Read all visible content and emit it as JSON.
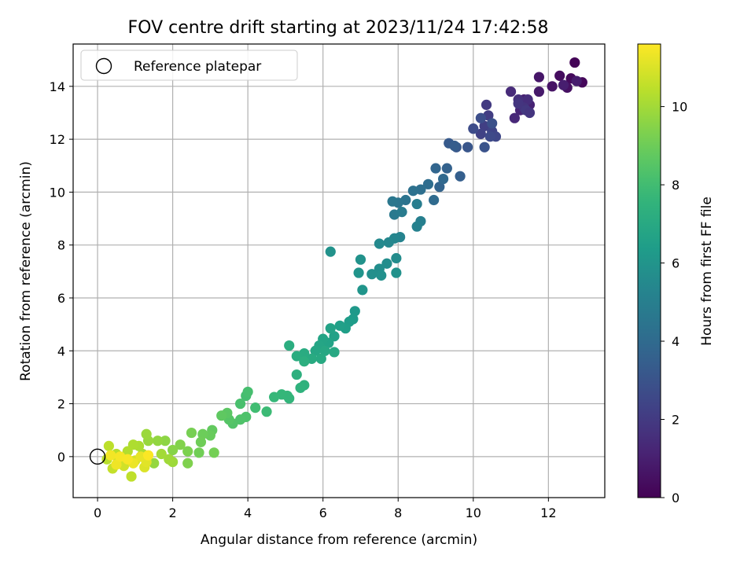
{
  "chart_data": {
    "type": "scatter",
    "title": "FOV centre drift starting at 2023/11/24 17:42:58",
    "xlabel": "Angular distance from reference (arcmin)",
    "ylabel": "Rotation from reference (arcmin)",
    "xlim": [
      -0.65,
      13.5
    ],
    "ylim": [
      -1.55,
      15.6
    ],
    "xticks": [
      0,
      2,
      4,
      6,
      8,
      10,
      12
    ],
    "yticks": [
      0,
      2,
      4,
      6,
      8,
      10,
      12,
      14
    ],
    "grid": true,
    "legend": {
      "placement": "upper-left",
      "entries": [
        "Reference platepar"
      ]
    },
    "reference_point": {
      "x": 0,
      "y": 0,
      "marker": "open-circle"
    },
    "colorbar": {
      "label": "Hours from first FF file",
      "colormap": "viridis",
      "range": [
        0,
        11.6
      ],
      "ticks": [
        0,
        2,
        4,
        6,
        8,
        10
      ]
    },
    "points": [
      [
        12.7,
        14.9,
        0.1
      ],
      [
        12.9,
        14.15,
        0.2
      ],
      [
        12.6,
        14.3,
        0.3
      ],
      [
        12.3,
        14.4,
        0.4
      ],
      [
        12.5,
        13.95,
        0.5
      ],
      [
        12.1,
        14.0,
        0.6
      ],
      [
        11.75,
        14.35,
        0.7
      ],
      [
        11.75,
        13.8,
        0.8
      ],
      [
        12.75,
        14.2,
        0.9
      ],
      [
        12.4,
        14.05,
        0.95
      ],
      [
        11.35,
        13.5,
        1.0
      ],
      [
        11.5,
        13.3,
        1.1
      ],
      [
        11.25,
        13.1,
        1.2
      ],
      [
        11.1,
        12.8,
        1.3
      ],
      [
        11.0,
        13.8,
        1.4
      ],
      [
        11.45,
        13.5,
        1.5
      ],
      [
        11.2,
        13.5,
        1.6
      ],
      [
        11.35,
        13.2,
        1.7
      ],
      [
        11.2,
        13.35,
        1.8
      ],
      [
        11.4,
        13.1,
        1.9
      ],
      [
        11.5,
        13.0,
        1.8
      ],
      [
        10.35,
        13.3,
        2.0
      ],
      [
        10.4,
        12.9,
        2.1
      ],
      [
        10.3,
        12.5,
        2.2
      ],
      [
        10.2,
        12.2,
        2.3
      ],
      [
        10.5,
        12.3,
        2.4
      ],
      [
        10.6,
        12.1,
        2.5
      ],
      [
        10.45,
        12.1,
        2.6
      ],
      [
        10.0,
        12.4,
        2.7
      ],
      [
        10.2,
        12.8,
        2.8
      ],
      [
        10.5,
        12.6,
        2.9
      ],
      [
        10.3,
        11.7,
        3.0
      ],
      [
        9.85,
        11.7,
        3.1
      ],
      [
        9.55,
        11.7,
        3.2
      ],
      [
        9.35,
        11.85,
        3.3
      ],
      [
        9.65,
        10.6,
        3.5
      ],
      [
        9.5,
        11.75,
        3.4
      ],
      [
        9.3,
        10.9,
        3.6
      ],
      [
        9.1,
        10.2,
        3.7
      ],
      [
        9.0,
        10.9,
        3.8
      ],
      [
        9.2,
        10.5,
        3.9
      ],
      [
        8.95,
        9.7,
        4.0
      ],
      [
        8.8,
        10.3,
        4.1
      ],
      [
        8.6,
        10.1,
        4.2
      ],
      [
        8.4,
        10.05,
        4.3
      ],
      [
        8.2,
        9.7,
        4.4
      ],
      [
        8.0,
        9.6,
        4.5
      ],
      [
        7.85,
        9.65,
        4.6
      ],
      [
        7.9,
        9.15,
        4.7
      ],
      [
        8.1,
        9.25,
        4.8
      ],
      [
        8.5,
        9.55,
        4.9
      ],
      [
        8.6,
        8.9,
        5.0
      ],
      [
        8.5,
        8.7,
        5.1
      ],
      [
        8.05,
        8.3,
        5.2
      ],
      [
        7.9,
        8.25,
        5.3
      ],
      [
        7.75,
        8.1,
        5.4
      ],
      [
        7.5,
        8.05,
        5.5
      ],
      [
        7.95,
        7.5,
        5.6
      ],
      [
        7.7,
        7.3,
        5.65
      ],
      [
        7.5,
        7.1,
        5.7
      ],
      [
        7.3,
        6.9,
        5.75
      ],
      [
        7.55,
        6.85,
        5.8
      ],
      [
        7.95,
        6.95,
        5.85
      ],
      [
        7.0,
        7.45,
        5.9
      ],
      [
        6.95,
        6.95,
        6.0
      ],
      [
        7.05,
        6.3,
        6.05
      ],
      [
        6.2,
        7.75,
        5.9
      ],
      [
        6.85,
        5.5,
        6.2
      ],
      [
        6.8,
        5.2,
        6.3
      ],
      [
        6.7,
        5.1,
        6.4
      ],
      [
        6.6,
        4.85,
        6.5
      ],
      [
        6.45,
        4.95,
        6.55
      ],
      [
        6.3,
        4.55,
        6.6
      ],
      [
        6.2,
        4.85,
        6.65
      ],
      [
        6.15,
        4.3,
        6.7
      ],
      [
        6.0,
        4.45,
        6.75
      ],
      [
        5.9,
        4.2,
        6.8
      ],
      [
        5.8,
        4.0,
        6.85
      ],
      [
        6.05,
        4.0,
        6.9
      ],
      [
        6.3,
        3.95,
        6.95
      ],
      [
        5.95,
        3.7,
        7.0
      ],
      [
        5.7,
        3.7,
        7.05
      ],
      [
        5.5,
        3.9,
        7.1
      ],
      [
        5.3,
        3.8,
        7.15
      ],
      [
        5.1,
        4.2,
        7.2
      ],
      [
        5.5,
        3.6,
        7.25
      ],
      [
        5.3,
        3.1,
        7.3
      ],
      [
        5.5,
        2.7,
        7.4
      ],
      [
        5.4,
        2.6,
        7.45
      ],
      [
        5.1,
        2.2,
        7.6
      ],
      [
        5.05,
        2.3,
        7.65
      ],
      [
        4.9,
        2.35,
        7.7
      ],
      [
        4.7,
        2.25,
        7.75
      ],
      [
        4.5,
        1.7,
        7.9
      ],
      [
        4.2,
        1.85,
        8.0
      ],
      [
        3.95,
        2.3,
        8.1
      ],
      [
        4.0,
        2.45,
        8.15
      ],
      [
        3.8,
        2.0,
        8.2
      ],
      [
        3.95,
        1.5,
        8.3
      ],
      [
        3.8,
        1.4,
        8.35
      ],
      [
        3.6,
        1.25,
        8.4
      ],
      [
        3.5,
        1.4,
        8.5
      ],
      [
        3.45,
        1.65,
        8.6
      ],
      [
        3.3,
        1.55,
        8.7
      ],
      [
        3.05,
        1.0,
        8.8
      ],
      [
        3.0,
        0.8,
        8.9
      ],
      [
        2.8,
        0.85,
        9.0
      ],
      [
        2.75,
        0.55,
        9.05
      ],
      [
        2.7,
        0.15,
        9.1
      ],
      [
        3.1,
        0.15,
        9.15
      ],
      [
        2.5,
        0.9,
        9.2
      ],
      [
        2.4,
        0.2,
        9.3
      ],
      [
        2.4,
        -0.25,
        9.35
      ],
      [
        2.2,
        0.45,
        9.4
      ],
      [
        2.0,
        0.25,
        9.5
      ],
      [
        1.8,
        0.6,
        9.6
      ],
      [
        1.6,
        0.6,
        9.7
      ],
      [
        1.5,
        -0.25,
        9.75
      ],
      [
        1.35,
        0.6,
        9.8
      ],
      [
        1.3,
        0.85,
        9.85
      ],
      [
        2.0,
        -0.2,
        9.9
      ],
      [
        1.9,
        -0.1,
        9.95
      ],
      [
        1.7,
        0.1,
        10.0
      ],
      [
        1.2,
        0.1,
        10.1
      ],
      [
        1.1,
        0.4,
        10.15
      ],
      [
        0.95,
        0.45,
        10.2
      ],
      [
        0.8,
        0.2,
        10.25
      ],
      [
        0.6,
        -0.2,
        10.3
      ],
      [
        0.5,
        0.1,
        10.35
      ],
      [
        0.25,
        -0.1,
        10.4
      ],
      [
        0.3,
        0.4,
        10.45
      ],
      [
        0.9,
        -0.75,
        10.5
      ],
      [
        0.4,
        -0.45,
        10.6
      ],
      [
        0.55,
        -0.1,
        10.7
      ],
      [
        0.7,
        -0.35,
        10.8
      ],
      [
        1.0,
        -0.15,
        10.9
      ],
      [
        1.25,
        -0.4,
        11.0
      ],
      [
        1.3,
        -0.2,
        11.1
      ],
      [
        1.15,
        0.0,
        11.2
      ],
      [
        0.95,
        -0.25,
        11.3
      ],
      [
        0.5,
        -0.3,
        11.35
      ],
      [
        0.35,
        0.05,
        11.4
      ],
      [
        0.6,
        0.0,
        11.45
      ],
      [
        0.8,
        -0.1,
        11.5
      ],
      [
        1.35,
        0.05,
        11.55
      ]
    ]
  }
}
